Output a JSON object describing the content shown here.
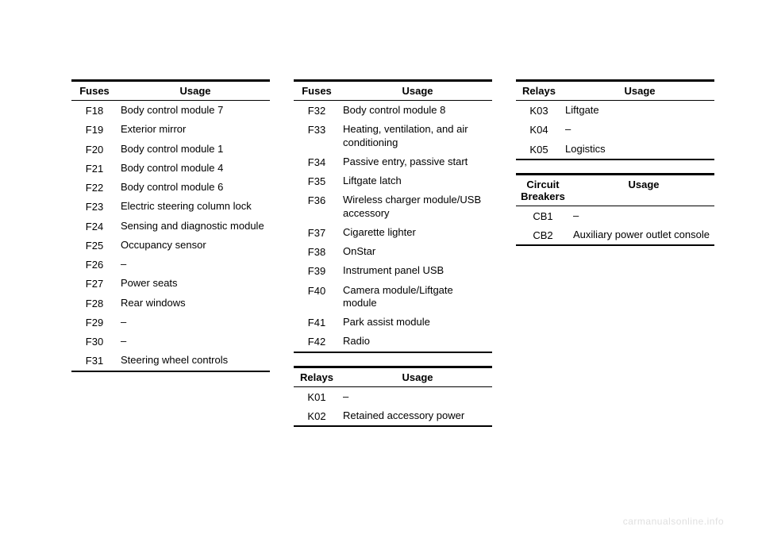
{
  "watermark": "carmanualsonline.info",
  "tables": {
    "fuses1": {
      "header_left": "Fuses",
      "header_right": "Usage",
      "rows": [
        {
          "id": "F18",
          "usage": "Body control module 7"
        },
        {
          "id": "F19",
          "usage": "Exterior mirror"
        },
        {
          "id": "F20",
          "usage": "Body control module 1"
        },
        {
          "id": "F21",
          "usage": "Body control module 4"
        },
        {
          "id": "F22",
          "usage": "Body control module 6"
        },
        {
          "id": "F23",
          "usage": "Electric steering column lock"
        },
        {
          "id": "F24",
          "usage": "Sensing and diagnostic module"
        },
        {
          "id": "F25",
          "usage": "Occupancy sensor"
        },
        {
          "id": "F26",
          "usage": "–"
        },
        {
          "id": "F27",
          "usage": "Power seats"
        },
        {
          "id": "F28",
          "usage": "Rear windows"
        },
        {
          "id": "F29",
          "usage": "–"
        },
        {
          "id": "F30",
          "usage": "–"
        },
        {
          "id": "F31",
          "usage": "Steering wheel controls"
        }
      ]
    },
    "fuses2": {
      "header_left": "Fuses",
      "header_right": "Usage",
      "rows": [
        {
          "id": "F32",
          "usage": "Body control module 8"
        },
        {
          "id": "F33",
          "usage": "Heating, ventilation, and air conditioning"
        },
        {
          "id": "F34",
          "usage": "Passive entry, passive start"
        },
        {
          "id": "F35",
          "usage": "Liftgate latch"
        },
        {
          "id": "F36",
          "usage": "Wireless charger module/USB accessory"
        },
        {
          "id": "F37",
          "usage": "Cigarette lighter"
        },
        {
          "id": "F38",
          "usage": "OnStar"
        },
        {
          "id": "F39",
          "usage": "Instrument panel USB"
        },
        {
          "id": "F40",
          "usage": "Camera module/Liftgate module"
        },
        {
          "id": "F41",
          "usage": "Park assist module"
        },
        {
          "id": "F42",
          "usage": "Radio"
        }
      ]
    },
    "relays1": {
      "header_left": "Relays",
      "header_right": "Usage",
      "rows": [
        {
          "id": "K01",
          "usage": "–"
        },
        {
          "id": "K02",
          "usage": "Retained accessory power"
        }
      ]
    },
    "relays2": {
      "header_left": "Relays",
      "header_right": "Usage",
      "rows": [
        {
          "id": "K03",
          "usage": "Liftgate"
        },
        {
          "id": "K04",
          "usage": "–"
        },
        {
          "id": "K05",
          "usage": "Logistics"
        }
      ]
    },
    "breakers": {
      "header_left": "Circuit Breakers",
      "header_right": "Usage",
      "rows": [
        {
          "id": "CB1",
          "usage": "–"
        },
        {
          "id": "CB2",
          "usage": "Auxiliary power outlet console"
        }
      ]
    }
  }
}
